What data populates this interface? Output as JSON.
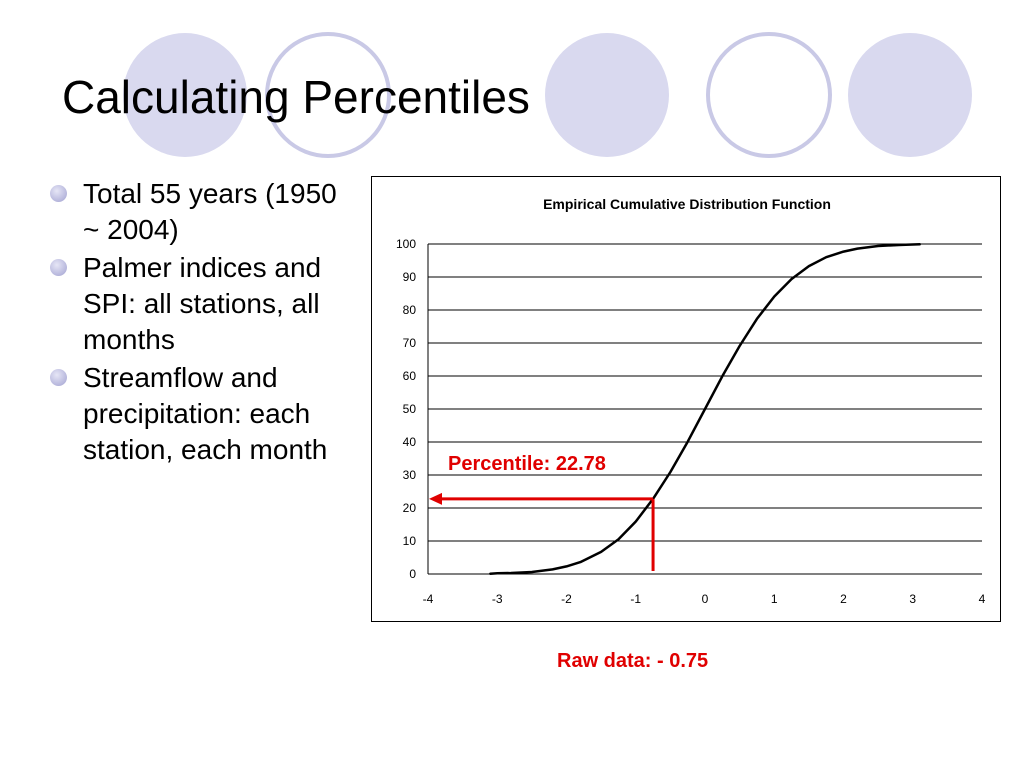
{
  "slide": {
    "title": "Calculating Percentiles",
    "bullets": [
      "Total 55 years (1950 ~ 2004)",
      "Palmer indices and SPI: all stations, all months",
      "Streamflow and precipitation: each station, each month"
    ],
    "raw_data_label": "Raw data: - 0.75"
  },
  "colors": {
    "bullet": "#b6b6dc",
    "circle_fill": "#d9d9ef",
    "circle_stroke": "#c9c9e6",
    "annotation": "#e00000",
    "curve": "#000000"
  },
  "chart_data": {
    "type": "line",
    "title": "Empirical Cumulative Distribution Function",
    "xlabel": "",
    "ylabel": "",
    "xlim": [
      -4,
      4
    ],
    "ylim": [
      0,
      100
    ],
    "x_ticks": [
      "-4",
      "-3",
      "-2",
      "-1",
      "0",
      "1",
      "2",
      "3",
      "4"
    ],
    "y_ticks": [
      "0",
      "10",
      "20",
      "30",
      "40",
      "50",
      "60",
      "70",
      "80",
      "90",
      "100"
    ],
    "grid": "horizontal",
    "series": [
      {
        "x": [
          -3.1,
          -3.0,
          -2.8,
          -2.5,
          -2.2,
          -2.0,
          -1.8,
          -1.5,
          -1.25,
          -1.0,
          -0.75,
          -0.5,
          -0.25,
          0.0,
          0.25,
          0.5,
          0.75,
          1.0,
          1.25,
          1.5,
          1.75,
          2.0,
          2.2,
          2.5,
          2.8,
          3.1
        ],
        "y": [
          0.1,
          0.2,
          0.3,
          0.6,
          1.4,
          2.3,
          3.6,
          6.7,
          10.5,
          15.9,
          22.78,
          30.9,
          40.1,
          50.0,
          59.9,
          69.1,
          77.3,
          84.1,
          89.4,
          93.3,
          96.0,
          97.7,
          98.6,
          99.4,
          99.7,
          99.9
        ]
      }
    ],
    "annotations": {
      "percentile_label": "Percentile: 22.78",
      "marker_x": -0.75,
      "marker_y": 22.78
    }
  }
}
